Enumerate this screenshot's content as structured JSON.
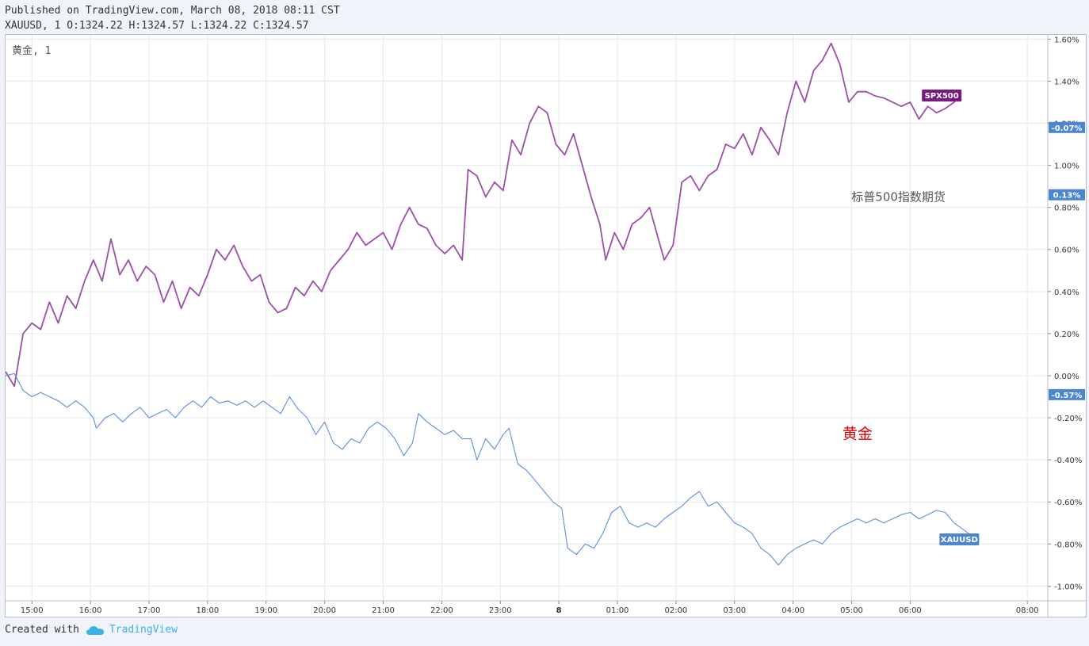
{
  "header": {
    "published": "Published on TradingView.com, March 08, 2018 08:11 CST",
    "ohlc": "XAUUSD, 1 O:1324.22 H:1324.57 L:1324.22 C:1324.57"
  },
  "legend": {
    "text": "黄金, 1"
  },
  "footer": {
    "created_with": "Created with",
    "brand": "TradingView",
    "brand_icon": "cloud-icon"
  },
  "colors": {
    "spx": "#9c4fa8",
    "gold": "#5b8fd8",
    "spx_tag": "#7a1a7e",
    "gold_tag": "#4c86d1",
    "annotation_gold": "#e00000"
  },
  "chart_data": {
    "type": "line",
    "x_ticks": [
      "15:00",
      "16:00",
      "17:00",
      "18:00",
      "19:00",
      "20:00",
      "21:00",
      "22:00",
      "23:00",
      "8",
      "01:00",
      "02:00",
      "03:00",
      "04:00",
      "05:00",
      "06:00",
      "08:00"
    ],
    "x_tick_hours": [
      15,
      16,
      17,
      18,
      19,
      20,
      21,
      22,
      23,
      24,
      25,
      26,
      27,
      28,
      29,
      30,
      32
    ],
    "x_range": [
      14.55,
      32.35
    ],
    "y_ticks": [
      "1.60%",
      "1.40%",
      "1.20%",
      "1.00%",
      "0.80%",
      "0.60%",
      "0.40%",
      "0.20%",
      "0.00%",
      "-0.20%",
      "-0.40%",
      "-0.60%",
      "-0.80%",
      "-1.00%"
    ],
    "y_range": [
      -1.07,
      1.62
    ],
    "annotations": [
      {
        "text": "标普500指数期货",
        "x": 29.8,
        "y": 0.83,
        "color": "#555555"
      },
      {
        "text": "黄金",
        "x": 29.1,
        "y": -0.3,
        "color": "#e00000"
      }
    ],
    "price_tags": [
      {
        "text": "-0.07%",
        "y": 1.18,
        "bg": "#4c86d1"
      },
      {
        "text": "0.13%",
        "y": 0.86,
        "bg": "#4c86d1"
      },
      {
        "text": "-0.57%",
        "y": -0.09,
        "bg": "#4c86d1"
      }
    ],
    "series": [
      {
        "name": "SPX500",
        "color": "#9c4fa8",
        "points": [
          [
            14.55,
            0.02
          ],
          [
            14.7,
            -0.05
          ],
          [
            14.85,
            0.2
          ],
          [
            15.0,
            0.25
          ],
          [
            15.15,
            0.22
          ],
          [
            15.3,
            0.35
          ],
          [
            15.45,
            0.25
          ],
          [
            15.6,
            0.38
          ],
          [
            15.75,
            0.32
          ],
          [
            15.9,
            0.45
          ],
          [
            16.05,
            0.55
          ],
          [
            16.2,
            0.45
          ],
          [
            16.35,
            0.65
          ],
          [
            16.5,
            0.48
          ],
          [
            16.65,
            0.55
          ],
          [
            16.8,
            0.45
          ],
          [
            16.95,
            0.52
          ],
          [
            17.1,
            0.48
          ],
          [
            17.25,
            0.35
          ],
          [
            17.4,
            0.45
          ],
          [
            17.55,
            0.32
          ],
          [
            17.7,
            0.42
          ],
          [
            17.85,
            0.38
          ],
          [
            18.0,
            0.48
          ],
          [
            18.15,
            0.6
          ],
          [
            18.3,
            0.55
          ],
          [
            18.45,
            0.62
          ],
          [
            18.6,
            0.52
          ],
          [
            18.75,
            0.45
          ],
          [
            18.9,
            0.48
          ],
          [
            19.05,
            0.35
          ],
          [
            19.2,
            0.3
          ],
          [
            19.35,
            0.32
          ],
          [
            19.5,
            0.42
          ],
          [
            19.65,
            0.38
          ],
          [
            19.8,
            0.45
          ],
          [
            19.95,
            0.4
          ],
          [
            20.1,
            0.5
          ],
          [
            20.25,
            0.55
          ],
          [
            20.4,
            0.6
          ],
          [
            20.55,
            0.68
          ],
          [
            20.7,
            0.62
          ],
          [
            20.85,
            0.65
          ],
          [
            21.0,
            0.68
          ],
          [
            21.15,
            0.6
          ],
          [
            21.3,
            0.72
          ],
          [
            21.45,
            0.8
          ],
          [
            21.6,
            0.72
          ],
          [
            21.75,
            0.7
          ],
          [
            21.9,
            0.62
          ],
          [
            22.05,
            0.58
          ],
          [
            22.2,
            0.62
          ],
          [
            22.35,
            0.55
          ],
          [
            22.45,
            0.98
          ],
          [
            22.6,
            0.95
          ],
          [
            22.75,
            0.85
          ],
          [
            22.9,
            0.92
          ],
          [
            23.05,
            0.88
          ],
          [
            23.2,
            1.12
          ],
          [
            23.35,
            1.05
          ],
          [
            23.5,
            1.2
          ],
          [
            23.65,
            1.28
          ],
          [
            23.8,
            1.25
          ],
          [
            23.95,
            1.1
          ],
          [
            24.1,
            1.05
          ],
          [
            24.25,
            1.15
          ],
          [
            24.4,
            1.0
          ],
          [
            24.55,
            0.85
          ],
          [
            24.7,
            0.72
          ],
          [
            24.8,
            0.55
          ],
          [
            24.95,
            0.68
          ],
          [
            25.1,
            0.6
          ],
          [
            25.25,
            0.72
          ],
          [
            25.4,
            0.75
          ],
          [
            25.55,
            0.8
          ],
          [
            25.7,
            0.65
          ],
          [
            25.8,
            0.55
          ],
          [
            25.95,
            0.62
          ],
          [
            26.1,
            0.92
          ],
          [
            26.25,
            0.95
          ],
          [
            26.4,
            0.88
          ],
          [
            26.55,
            0.95
          ],
          [
            26.7,
            0.98
          ],
          [
            26.85,
            1.1
          ],
          [
            27.0,
            1.08
          ],
          [
            27.15,
            1.15
          ],
          [
            27.3,
            1.05
          ],
          [
            27.45,
            1.18
          ],
          [
            27.6,
            1.12
          ],
          [
            27.75,
            1.05
          ],
          [
            27.9,
            1.25
          ],
          [
            28.05,
            1.4
          ],
          [
            28.2,
            1.3
          ],
          [
            28.35,
            1.45
          ],
          [
            28.5,
            1.5
          ],
          [
            28.65,
            1.58
          ],
          [
            28.8,
            1.48
          ],
          [
            28.95,
            1.3
          ],
          [
            29.1,
            1.35
          ],
          [
            29.25,
            1.35
          ],
          [
            29.4,
            1.33
          ],
          [
            29.55,
            1.32
          ],
          [
            29.7,
            1.3
          ],
          [
            29.85,
            1.28
          ],
          [
            30.0,
            1.3
          ],
          [
            30.15,
            1.22
          ],
          [
            30.3,
            1.28
          ],
          [
            30.45,
            1.25
          ],
          [
            30.6,
            1.27
          ],
          [
            30.75,
            1.3
          ],
          [
            30.85,
            1.33
          ]
        ]
      },
      {
        "name": "XAUUSD",
        "color": "#5b8fd8",
        "points": [
          [
            14.55,
            0.0
          ],
          [
            14.7,
            0.01
          ],
          [
            14.85,
            -0.07
          ],
          [
            15.0,
            -0.1
          ],
          [
            15.15,
            -0.08
          ],
          [
            15.3,
            -0.1
          ],
          [
            15.45,
            -0.12
          ],
          [
            15.6,
            -0.15
          ],
          [
            15.75,
            -0.12
          ],
          [
            15.9,
            -0.15
          ],
          [
            16.05,
            -0.2
          ],
          [
            16.1,
            -0.25
          ],
          [
            16.25,
            -0.2
          ],
          [
            16.4,
            -0.18
          ],
          [
            16.55,
            -0.22
          ],
          [
            16.7,
            -0.18
          ],
          [
            16.85,
            -0.15
          ],
          [
            17.0,
            -0.2
          ],
          [
            17.15,
            -0.18
          ],
          [
            17.3,
            -0.16
          ],
          [
            17.45,
            -0.2
          ],
          [
            17.6,
            -0.15
          ],
          [
            17.75,
            -0.12
          ],
          [
            17.9,
            -0.15
          ],
          [
            18.05,
            -0.1
          ],
          [
            18.2,
            -0.13
          ],
          [
            18.35,
            -0.12
          ],
          [
            18.5,
            -0.14
          ],
          [
            18.65,
            -0.12
          ],
          [
            18.8,
            -0.15
          ],
          [
            18.95,
            -0.12
          ],
          [
            19.1,
            -0.15
          ],
          [
            19.25,
            -0.18
          ],
          [
            19.4,
            -0.1
          ],
          [
            19.55,
            -0.16
          ],
          [
            19.7,
            -0.2
          ],
          [
            19.85,
            -0.28
          ],
          [
            20.0,
            -0.22
          ],
          [
            20.15,
            -0.32
          ],
          [
            20.3,
            -0.35
          ],
          [
            20.45,
            -0.3
          ],
          [
            20.6,
            -0.32
          ],
          [
            20.75,
            -0.25
          ],
          [
            20.9,
            -0.22
          ],
          [
            21.05,
            -0.25
          ],
          [
            21.2,
            -0.3
          ],
          [
            21.35,
            -0.38
          ],
          [
            21.5,
            -0.32
          ],
          [
            21.6,
            -0.18
          ],
          [
            21.75,
            -0.22
          ],
          [
            21.9,
            -0.25
          ],
          [
            22.05,
            -0.28
          ],
          [
            22.2,
            -0.26
          ],
          [
            22.35,
            -0.3
          ],
          [
            22.5,
            -0.3
          ],
          [
            22.6,
            -0.4
          ],
          [
            22.75,
            -0.3
          ],
          [
            22.9,
            -0.35
          ],
          [
            23.05,
            -0.28
          ],
          [
            23.15,
            -0.25
          ],
          [
            23.3,
            -0.42
          ],
          [
            23.45,
            -0.45
          ],
          [
            23.6,
            -0.5
          ],
          [
            23.75,
            -0.55
          ],
          [
            23.9,
            -0.6
          ],
          [
            24.05,
            -0.63
          ],
          [
            24.15,
            -0.82
          ],
          [
            24.3,
            -0.85
          ],
          [
            24.45,
            -0.8
          ],
          [
            24.6,
            -0.82
          ],
          [
            24.75,
            -0.75
          ],
          [
            24.9,
            -0.65
          ],
          [
            25.05,
            -0.62
          ],
          [
            25.2,
            -0.7
          ],
          [
            25.35,
            -0.72
          ],
          [
            25.5,
            -0.7
          ],
          [
            25.65,
            -0.72
          ],
          [
            25.8,
            -0.68
          ],
          [
            25.95,
            -0.65
          ],
          [
            26.1,
            -0.62
          ],
          [
            26.25,
            -0.58
          ],
          [
            26.4,
            -0.55
          ],
          [
            26.55,
            -0.62
          ],
          [
            26.7,
            -0.6
          ],
          [
            26.85,
            -0.65
          ],
          [
            27.0,
            -0.7
          ],
          [
            27.15,
            -0.72
          ],
          [
            27.3,
            -0.75
          ],
          [
            27.45,
            -0.82
          ],
          [
            27.6,
            -0.85
          ],
          [
            27.75,
            -0.9
          ],
          [
            27.9,
            -0.85
          ],
          [
            28.05,
            -0.82
          ],
          [
            28.2,
            -0.8
          ],
          [
            28.35,
            -0.78
          ],
          [
            28.5,
            -0.8
          ],
          [
            28.65,
            -0.75
          ],
          [
            28.8,
            -0.72
          ],
          [
            28.95,
            -0.7
          ],
          [
            29.1,
            -0.68
          ],
          [
            29.25,
            -0.7
          ],
          [
            29.4,
            -0.68
          ],
          [
            29.55,
            -0.7
          ],
          [
            29.7,
            -0.68
          ],
          [
            29.85,
            -0.66
          ],
          [
            30.0,
            -0.65
          ],
          [
            30.15,
            -0.68
          ],
          [
            30.3,
            -0.66
          ],
          [
            30.45,
            -0.64
          ],
          [
            30.6,
            -0.65
          ],
          [
            30.75,
            -0.7
          ],
          [
            30.85,
            -0.72
          ],
          [
            31.0,
            -0.75
          ],
          [
            31.15,
            -0.78
          ]
        ]
      }
    ]
  }
}
